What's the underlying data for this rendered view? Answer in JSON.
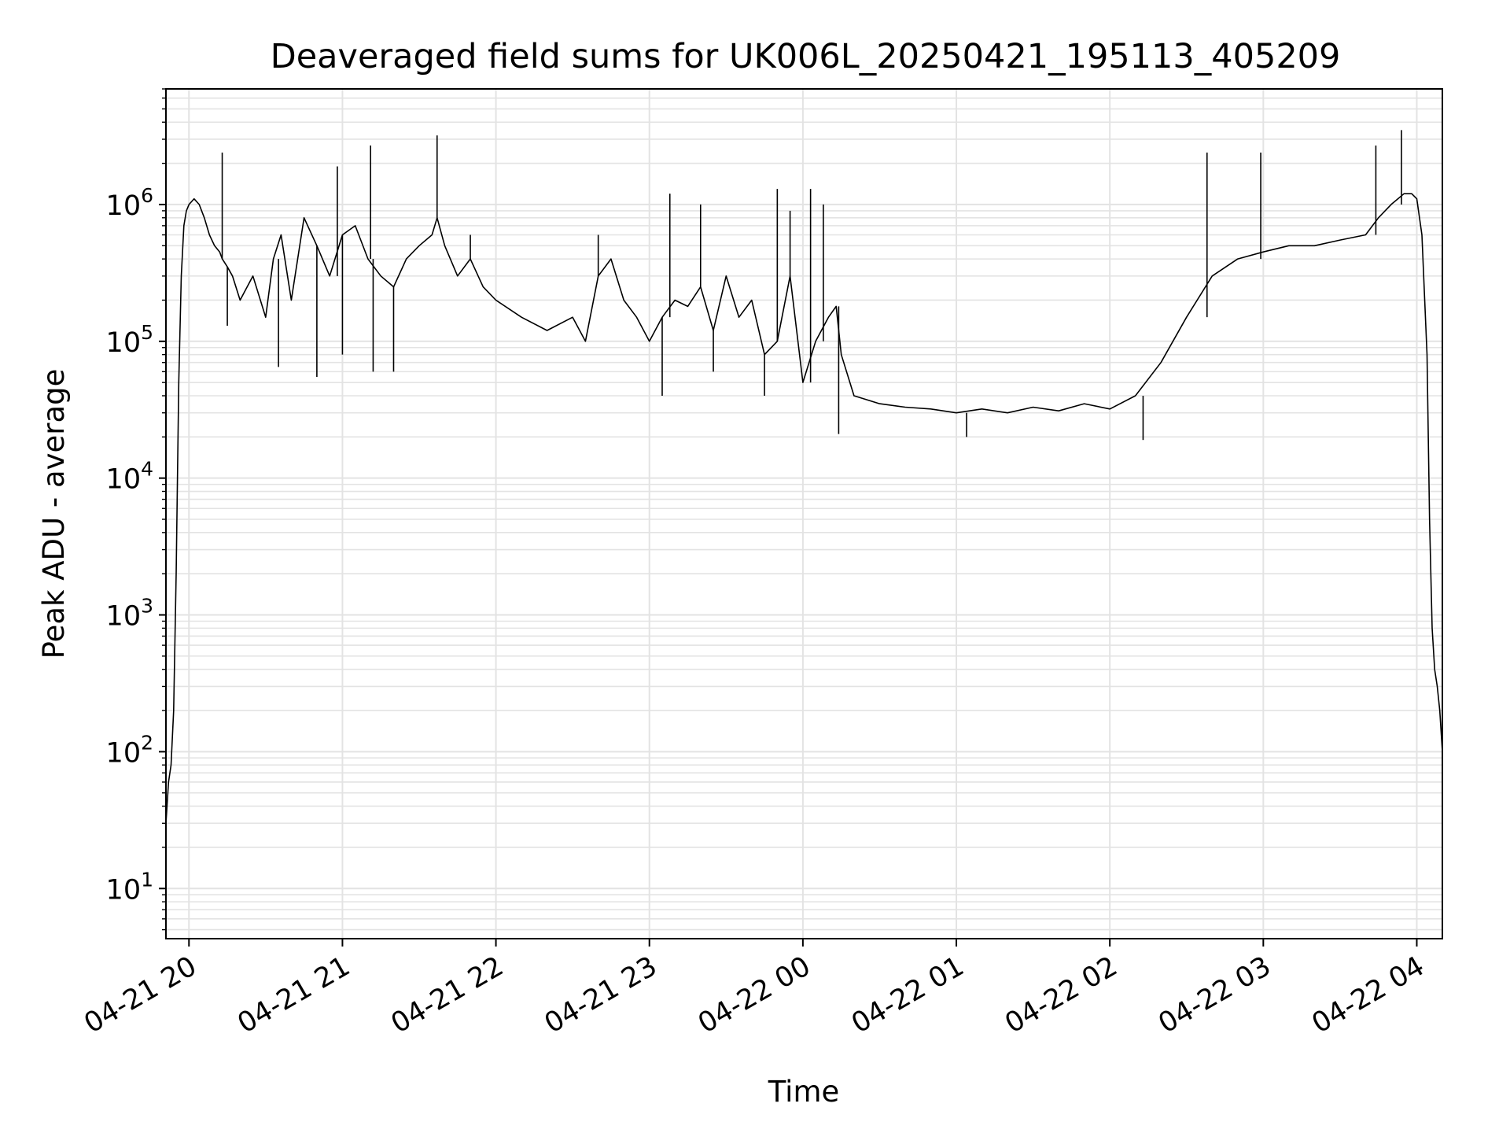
{
  "chart_data": {
    "type": "line",
    "title": "Deaveraged field sums for UK006L_20250421_195113_405209",
    "xlabel": "Time",
    "ylabel": "Peak ADU - average",
    "yscale": "log",
    "ylim": [
      4.3,
      7000000
    ],
    "xlim": [
      "2025-04-21 19:51",
      "2025-04-22 04:10"
    ],
    "grid": true,
    "line_color": "#000000",
    "grid_color": "#e3e3e3",
    "x_ticks": [
      "04-21 20",
      "04-21 21",
      "04-21 22",
      "04-21 23",
      "04-22 00",
      "04-22 01",
      "04-22 02",
      "04-22 03",
      "04-22 04"
    ],
    "x_tick_values": [
      "2025-04-21 20:00",
      "2025-04-21 21:00",
      "2025-04-21 22:00",
      "2025-04-21 23:00",
      "2025-04-22 00:00",
      "2025-04-22 01:00",
      "2025-04-22 02:00",
      "2025-04-22 03:00",
      "2025-04-22 04:00"
    ],
    "y_ticks": [
      {
        "value": 10,
        "base": "10",
        "exp": "1"
      },
      {
        "value": 100,
        "base": "10",
        "exp": "2"
      },
      {
        "value": 1000,
        "base": "10",
        "exp": "3"
      },
      {
        "value": 10000,
        "base": "10",
        "exp": "4"
      },
      {
        "value": 100000,
        "base": "10",
        "exp": "5"
      },
      {
        "value": 1000000,
        "base": "10",
        "exp": "6"
      }
    ],
    "series": [
      {
        "time": [
          "2025-04-21 19:51",
          "2025-04-21 19:52",
          "2025-04-21 19:53",
          "2025-04-21 19:54",
          "2025-04-21 19:55",
          "2025-04-21 19:56",
          "2025-04-21 19:57",
          "2025-04-21 19:58",
          "2025-04-21 19:59",
          "2025-04-21 20:00",
          "2025-04-21 20:02",
          "2025-04-21 20:04",
          "2025-04-21 20:06",
          "2025-04-21 20:08",
          "2025-04-21 20:10",
          "2025-04-21 20:12",
          "2025-04-21 20:13",
          "2025-04-21 20:15",
          "2025-04-21 20:17",
          "2025-04-21 20:20",
          "2025-04-21 20:25",
          "2025-04-21 20:30",
          "2025-04-21 20:33",
          "2025-04-21 20:36",
          "2025-04-21 20:40",
          "2025-04-21 20:45",
          "2025-04-21 20:50",
          "2025-04-21 20:55",
          "2025-04-21 21:00",
          "2025-04-21 21:05",
          "2025-04-21 21:10",
          "2025-04-21 21:15",
          "2025-04-21 21:20",
          "2025-04-21 21:25",
          "2025-04-21 21:30",
          "2025-04-21 21:35",
          "2025-04-21 21:37",
          "2025-04-21 21:40",
          "2025-04-21 21:45",
          "2025-04-21 21:50",
          "2025-04-21 21:55",
          "2025-04-21 22:00",
          "2025-04-21 22:10",
          "2025-04-21 22:20",
          "2025-04-21 22:30",
          "2025-04-21 22:35",
          "2025-04-21 22:40",
          "2025-04-21 22:45",
          "2025-04-21 22:50",
          "2025-04-21 22:55",
          "2025-04-21 23:00",
          "2025-04-21 23:05",
          "2025-04-21 23:10",
          "2025-04-21 23:15",
          "2025-04-21 23:20",
          "2025-04-21 23:25",
          "2025-04-21 23:30",
          "2025-04-21 23:35",
          "2025-04-21 23:40",
          "2025-04-21 23:45",
          "2025-04-21 23:50",
          "2025-04-21 23:55",
          "2025-04-22 00:00",
          "2025-04-22 00:05",
          "2025-04-22 00:10",
          "2025-04-22 00:13",
          "2025-04-22 00:15",
          "2025-04-22 00:20",
          "2025-04-22 00:30",
          "2025-04-22 00:40",
          "2025-04-22 00:50",
          "2025-04-22 01:00",
          "2025-04-22 01:10",
          "2025-04-22 01:20",
          "2025-04-22 01:30",
          "2025-04-22 01:40",
          "2025-04-22 01:50",
          "2025-04-22 02:00",
          "2025-04-22 02:10",
          "2025-04-22 02:20",
          "2025-04-22 02:30",
          "2025-04-22 02:40",
          "2025-04-22 02:50",
          "2025-04-22 03:00",
          "2025-04-22 03:10",
          "2025-04-22 03:20",
          "2025-04-22 03:30",
          "2025-04-22 03:40",
          "2025-04-22 03:45",
          "2025-04-22 03:50",
          "2025-04-22 03:55",
          "2025-04-22 03:58",
          "2025-04-22 04:00",
          "2025-04-22 04:02",
          "2025-04-22 04:04",
          "2025-04-22 04:05",
          "2025-04-22 04:06",
          "2025-04-22 04:07",
          "2025-04-22 04:08",
          "2025-04-22 04:09",
          "2025-04-22 04:10"
        ],
        "value": [
          30,
          60,
          80,
          200,
          2000,
          50000,
          300000,
          700000,
          900000,
          1000000,
          1100000,
          1000000,
          800000,
          600000,
          500000,
          450000,
          400000,
          350000,
          300000,
          200000,
          300000,
          150000,
          400000,
          600000,
          200000,
          800000,
          500000,
          300000,
          600000,
          700000,
          400000,
          300000,
          250000,
          400000,
          500000,
          600000,
          800000,
          500000,
          300000,
          400000,
          250000,
          200000,
          150000,
          120000,
          150000,
          100000,
          300000,
          400000,
          200000,
          150000,
          100000,
          150000,
          200000,
          180000,
          250000,
          120000,
          300000,
          150000,
          200000,
          80000,
          100000,
          300000,
          50000,
          100000,
          150000,
          180000,
          80000,
          40000,
          35000,
          33000,
          32000,
          30000,
          32000,
          30000,
          33000,
          31000,
          35000,
          32000,
          40000,
          70000,
          150000,
          300000,
          400000,
          450000,
          500000,
          500000,
          550000,
          600000,
          800000,
          1000000,
          1200000,
          1200000,
          1100000,
          600000,
          80000,
          5000,
          800,
          400,
          300,
          200,
          100
        ],
        "spikes": [
          {
            "time": "2025-04-21 20:13",
            "value": 2400000
          },
          {
            "time": "2025-04-21 20:15",
            "value": 130000
          },
          {
            "time": "2025-04-21 20:35",
            "value": 65000
          },
          {
            "time": "2025-04-21 20:50",
            "value": 55000
          },
          {
            "time": "2025-04-21 20:58",
            "value": 1900000
          },
          {
            "time": "2025-04-21 21:00",
            "value": 80000
          },
          {
            "time": "2025-04-21 21:11",
            "value": 2700000
          },
          {
            "time": "2025-04-21 21:12",
            "value": 60000
          },
          {
            "time": "2025-04-21 21:20",
            "value": 60000
          },
          {
            "time": "2025-04-21 21:37",
            "value": 3200000
          },
          {
            "time": "2025-04-21 21:50",
            "value": 600000
          },
          {
            "time": "2025-04-21 22:40",
            "value": 600000
          },
          {
            "time": "2025-04-21 23:05",
            "value": 40000
          },
          {
            "time": "2025-04-21 23:08",
            "value": 1200000
          },
          {
            "time": "2025-04-21 23:20",
            "value": 1000000
          },
          {
            "time": "2025-04-21 23:25",
            "value": 60000
          },
          {
            "time": "2025-04-21 23:45",
            "value": 40000
          },
          {
            "time": "2025-04-21 23:50",
            "value": 1300000
          },
          {
            "time": "2025-04-21 23:55",
            "value": 900000
          },
          {
            "time": "2025-04-22 00:03",
            "value": 1300000
          },
          {
            "time": "2025-04-22 00:08",
            "value": 1000000
          },
          {
            "time": "2025-04-22 00:14",
            "value": 21000
          },
          {
            "time": "2025-04-22 01:04",
            "value": 20000
          },
          {
            "time": "2025-04-22 02:13",
            "value": 19000
          },
          {
            "time": "2025-04-22 02:38",
            "value": 2400000
          },
          {
            "time": "2025-04-22 02:59",
            "value": 2400000
          },
          {
            "time": "2025-04-22 03:44",
            "value": 2700000
          },
          {
            "time": "2025-04-22 03:54",
            "value": 3500000
          }
        ]
      }
    ]
  }
}
